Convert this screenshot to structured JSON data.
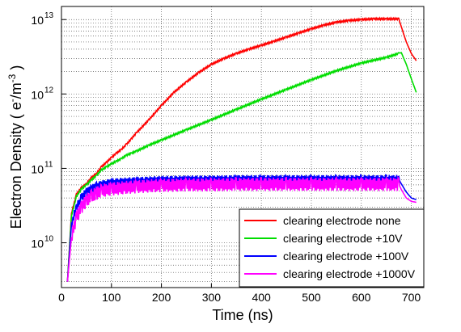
{
  "chart_data": {
    "type": "line",
    "title": "",
    "xlabel": "Time (ns)",
    "ylabel_main": "Electron Density ( e",
    "ylabel_sup1": "-",
    "ylabel_mid": "/m",
    "ylabel_sup2": "-3",
    "ylabel_end": " )",
    "y_scale": "log",
    "xlim": [
      0,
      725
    ],
    "ylim": [
      2500000000.0,
      15000000000000.0
    ],
    "grid": true,
    "grid_style": "dotted",
    "legend_position": "bottom-right",
    "x_ticks": [
      0,
      100,
      200,
      300,
      400,
      500,
      600,
      700
    ],
    "y_ticks": [
      {
        "value": 10000000000.0,
        "base": "10",
        "exp": "10"
      },
      {
        "value": 100000000000.0,
        "base": "10",
        "exp": "11"
      },
      {
        "value": 1000000000000.0,
        "base": "10",
        "exp": "12"
      },
      {
        "value": 10000000000000.0,
        "base": "10",
        "exp": "13"
      }
    ],
    "series": [
      {
        "name": "clearing electrode   none",
        "color": "#ff0000",
        "x": [
          12,
          20,
          30,
          40,
          50,
          60,
          70,
          80,
          90,
          100,
          110,
          120,
          130,
          140,
          150,
          175,
          200,
          225,
          250,
          275,
          300,
          325,
          350,
          375,
          400,
          425,
          450,
          475,
          500,
          525,
          550,
          575,
          600,
          625,
          650,
          675,
          680,
          690,
          700,
          710
        ],
        "y": [
          3000000000.0,
          25000000000.0,
          45000000000.0,
          55000000000.0,
          62000000000.0,
          75000000000.0,
          85000000000.0,
          105000000000.0,
          120000000000.0,
          140000000000.0,
          160000000000.0,
          180000000000.0,
          210000000000.0,
          250000000000.0,
          300000000000.0,
          450000000000.0,
          700000000000.0,
          1050000000000.0,
          1450000000000.0,
          1950000000000.0,
          2500000000000.0,
          3000000000000.0,
          3500000000000.0,
          4000000000000.0,
          4500000000000.0,
          5100000000000.0,
          5800000000000.0,
          6600000000000.0,
          7500000000000.0,
          8400000000000.0,
          9200000000000.0,
          9700000000000.0,
          10000000000000.0,
          10200000000000.0,
          10200000000000.0,
          10200000000000.0,
          8000000000000.0,
          5000000000000.0,
          3500000000000.0,
          2800000000000.0
        ]
      },
      {
        "name": "clearing electrode  +10V",
        "color": "#00dd00",
        "x": [
          12,
          20,
          30,
          40,
          50,
          60,
          70,
          80,
          90,
          100,
          110,
          120,
          130,
          140,
          150,
          175,
          200,
          250,
          300,
          350,
          400,
          450,
          500,
          550,
          600,
          650,
          675,
          680,
          690,
          700,
          710
        ],
        "y": [
          3000000000.0,
          23000000000.0,
          42000000000.0,
          53000000000.0,
          60000000000.0,
          70000000000.0,
          80000000000.0,
          95000000000.0,
          105000000000.0,
          115000000000.0,
          125000000000.0,
          135000000000.0,
          150000000000.0,
          160000000000.0,
          170000000000.0,
          205000000000.0,
          240000000000.0,
          330000000000.0,
          450000000000.0,
          620000000000.0,
          850000000000.0,
          1150000000000.0,
          1550000000000.0,
          2050000000000.0,
          2600000000000.0,
          3100000000000.0,
          3500000000000.0,
          3600000000000.0,
          2500000000000.0,
          1600000000000.0,
          1050000000000.0
        ]
      },
      {
        "name": "clearing electrode  +100V",
        "color": "#0000ff",
        "x": [
          12,
          20,
          30,
          40,
          50,
          60,
          70,
          80,
          100,
          150,
          200,
          250,
          300,
          350,
          400,
          450,
          500,
          550,
          600,
          650,
          675,
          680,
          690,
          700,
          710
        ],
        "y": [
          3000000000.0,
          18000000000.0,
          30000000000.0,
          40000000000.0,
          48000000000.0,
          53000000000.0,
          57000000000.0,
          60000000000.0,
          64000000000.0,
          67000000000.0,
          69000000000.0,
          70000000000.0,
          70000000000.0,
          71000000000.0,
          71000000000.0,
          71000000000.0,
          71000000000.0,
          71000000000.0,
          71000000000.0,
          71000000000.0,
          71000000000.0,
          62000000000.0,
          48000000000.0,
          40000000000.0,
          38000000000.0
        ]
      },
      {
        "name": "clearing electrode  +1000V",
        "color": "#ff00ff",
        "x": [
          12,
          20,
          30,
          40,
          50,
          60,
          70,
          80,
          100,
          150,
          200,
          250,
          300,
          350,
          400,
          450,
          500,
          550,
          600,
          650,
          675,
          680,
          690,
          700,
          710
        ],
        "y": [
          3000000000.0,
          12000000000.0,
          22000000000.0,
          30000000000.0,
          37000000000.0,
          42000000000.0,
          46000000000.0,
          50000000000.0,
          53000000000.0,
          57000000000.0,
          59000000000.0,
          60000000000.0,
          60000000000.0,
          61000000000.0,
          61000000000.0,
          61000000000.0,
          61000000000.0,
          61000000000.0,
          61000000000.0,
          61000000000.0,
          61000000000.0,
          52000000000.0,
          40000000000.0,
          36000000000.0,
          35000000000.0
        ]
      }
    ]
  }
}
